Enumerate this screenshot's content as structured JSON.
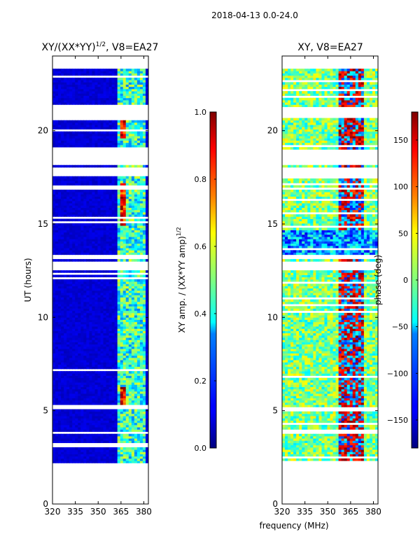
{
  "suptitle": "2018-04-13 0.0-24.0",
  "shared_xlabel": "frequency (MHz)",
  "chart_data": [
    {
      "type": "heatmap",
      "title": "XY/(XX*YY)^{1/2}, V8=EA27",
      "title_main": "XY/(XX*YY)",
      "title_sup": "1/2",
      "title_tail": ", V8=EA27",
      "ylabel": "UT (hours)",
      "xlim": [
        320,
        383
      ],
      "ylim": [
        0,
        24
      ],
      "x_ticks": [
        320,
        335,
        350,
        365,
        380
      ],
      "y_ticks": [
        0,
        5,
        10,
        15,
        20
      ],
      "data_time_range": [
        2.2,
        23.3
      ],
      "colormap": "jet",
      "colorbar": {
        "label": "XY amp. / (XX*YY amp)^{1/2}",
        "label_main": "XY amp. / (XX*YY amp)",
        "label_sup": "1/2",
        "range": [
          0.0,
          1.0
        ],
        "ticks": [
          0.0,
          0.2,
          0.4,
          0.6,
          0.8,
          1.0
        ],
        "tick_labels": [
          "0.0",
          "0.2",
          "0.4",
          "0.6",
          "0.8",
          "1.0"
        ]
      }
    },
    {
      "type": "heatmap",
      "title": "XY, V8=EA27",
      "xlim": [
        320,
        383
      ],
      "ylim": [
        0,
        24
      ],
      "x_ticks": [
        320,
        335,
        350,
        365,
        380
      ],
      "y_ticks": [
        0,
        5,
        10,
        15,
        20
      ],
      "data_time_range": [
        2.2,
        23.3
      ],
      "colormap": "jet",
      "colorbar": {
        "label": "phase (deg)",
        "range": [
          -180,
          180
        ],
        "ticks": [
          -150,
          -100,
          -50,
          0,
          50,
          100,
          150
        ],
        "tick_labels": [
          "−150",
          "−100",
          "−50",
          "0",
          "50",
          "100",
          "150"
        ]
      }
    }
  ]
}
